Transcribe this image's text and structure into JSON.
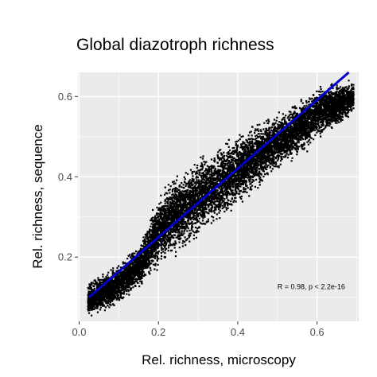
{
  "chart_data": {
    "type": "scatter",
    "title": "Global diazotroph richness",
    "xlabel": "Rel. richness, microscopy",
    "ylabel": "Rel. richness, sequence",
    "xlim": [
      -0.003,
      0.705
    ],
    "ylim": [
      0.04,
      0.66
    ],
    "x_ticks": [
      0.0,
      0.2,
      0.4,
      0.6
    ],
    "x_tick_labels": [
      "0.0",
      "0.2",
      "0.4",
      "0.6"
    ],
    "y_ticks": [
      0.2,
      0.4,
      0.6
    ],
    "y_tick_labels": [
      "0.2",
      "0.4",
      "0.6"
    ],
    "grid": true,
    "legend": "none",
    "panel_color": "#ebebeb",
    "point_color": "#000000",
    "fit_line_color": "#0000cc",
    "fit_line": {
      "x": [
        0.025,
        0.68
      ],
      "y": [
        0.1,
        0.66
      ]
    },
    "annotation": {
      "text": "R = 0.98, p < 2.2e-16",
      "x": 0.5,
      "y": 0.12
    },
    "point_cloud": {
      "description": "dense band of points around the fit line",
      "x_range": [
        0.02,
        0.69
      ],
      "lower_edge": {
        "x": [
          0.02,
          0.1,
          0.2,
          0.3,
          0.4,
          0.5,
          0.6,
          0.66,
          0.69
        ],
        "y": [
          0.05,
          0.08,
          0.17,
          0.24,
          0.32,
          0.41,
          0.49,
          0.53,
          0.56
        ]
      },
      "upper_edge": {
        "x": [
          0.02,
          0.1,
          0.15,
          0.18,
          0.22,
          0.3,
          0.4,
          0.5,
          0.6,
          0.66,
          0.69
        ],
        "y": [
          0.14,
          0.19,
          0.24,
          0.32,
          0.4,
          0.46,
          0.52,
          0.57,
          0.63,
          0.64,
          0.64
        ]
      }
    }
  }
}
